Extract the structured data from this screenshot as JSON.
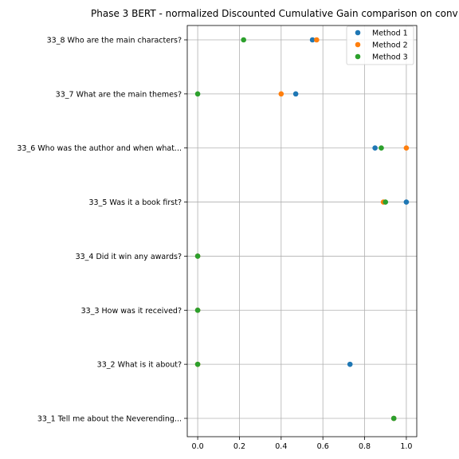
{
  "chart_data": {
    "type": "scatter",
    "title": "Phase 3 BERT - normalized Discounted Cumulative Gain comparison on conv",
    "xlabel": "",
    "ylabel": "",
    "xlim": [
      -0.05,
      1.05
    ],
    "xticks": [
      0.0,
      0.2,
      0.4,
      0.6,
      0.8,
      1.0
    ],
    "xtick_labels": [
      "0.0",
      "0.2",
      "0.4",
      "0.6",
      "0.8",
      "1.0"
    ],
    "grid": true,
    "legend_position": "top-right",
    "categories": [
      "33_1 Tell me about the Neverending...",
      "33_2 What is it about?",
      "33_3 How was it received?",
      "33_4 Did it win any awards?",
      "33_5 Was it a book first?",
      "33_6 Who was the author and when what...",
      "33_7 What are the main themes?",
      "33_8 Who are the main characters?"
    ],
    "series": [
      {
        "name": "Method 1",
        "color": "#1f77b4",
        "values": [
          0.94,
          0.73,
          0.0,
          0.0,
          1.0,
          0.85,
          0.47,
          0.55
        ]
      },
      {
        "name": "Method 2",
        "color": "#ff7f0e",
        "values": [
          0.94,
          0.0,
          0.0,
          0.0,
          0.89,
          1.0,
          0.4,
          0.57
        ]
      },
      {
        "name": "Method 3",
        "color": "#2ca02c",
        "values": [
          0.94,
          0.0,
          0.0,
          0.0,
          0.9,
          0.88,
          0.0,
          0.22
        ]
      }
    ]
  }
}
